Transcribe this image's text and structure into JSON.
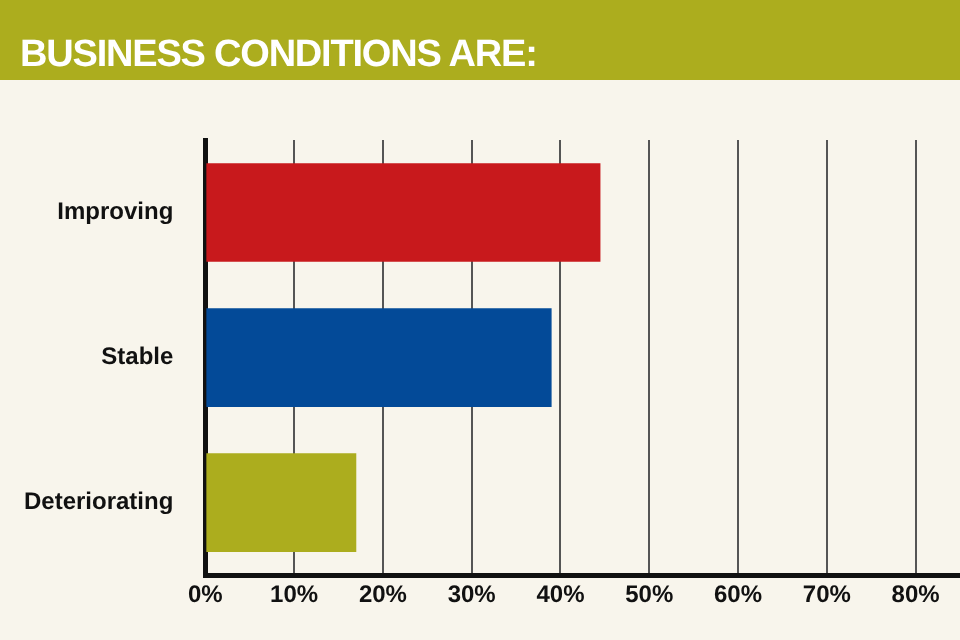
{
  "chart_data": {
    "type": "bar",
    "orientation": "horizontal",
    "title": "BUSINESS CONDITIONS ARE:",
    "categories": [
      "Improving",
      "Stable",
      "Deteriorating"
    ],
    "values": [
      44.5,
      39,
      17
    ],
    "colors": [
      "#c8191c",
      "#034a98",
      "#acad1e"
    ],
    "xlim": [
      0,
      85
    ],
    "xticks": [
      {
        "value": 0,
        "label": "0%"
      },
      {
        "value": 10,
        "label": "10%"
      },
      {
        "value": 20,
        "label": "20%"
      },
      {
        "value": 30,
        "label": "30%"
      },
      {
        "value": 40,
        "label": "40%"
      },
      {
        "value": 50,
        "label": "50%"
      },
      {
        "value": 60,
        "label": "60%"
      },
      {
        "value": 70,
        "label": "70%"
      },
      {
        "value": 80,
        "label": "80%"
      }
    ],
    "grid": "x"
  }
}
